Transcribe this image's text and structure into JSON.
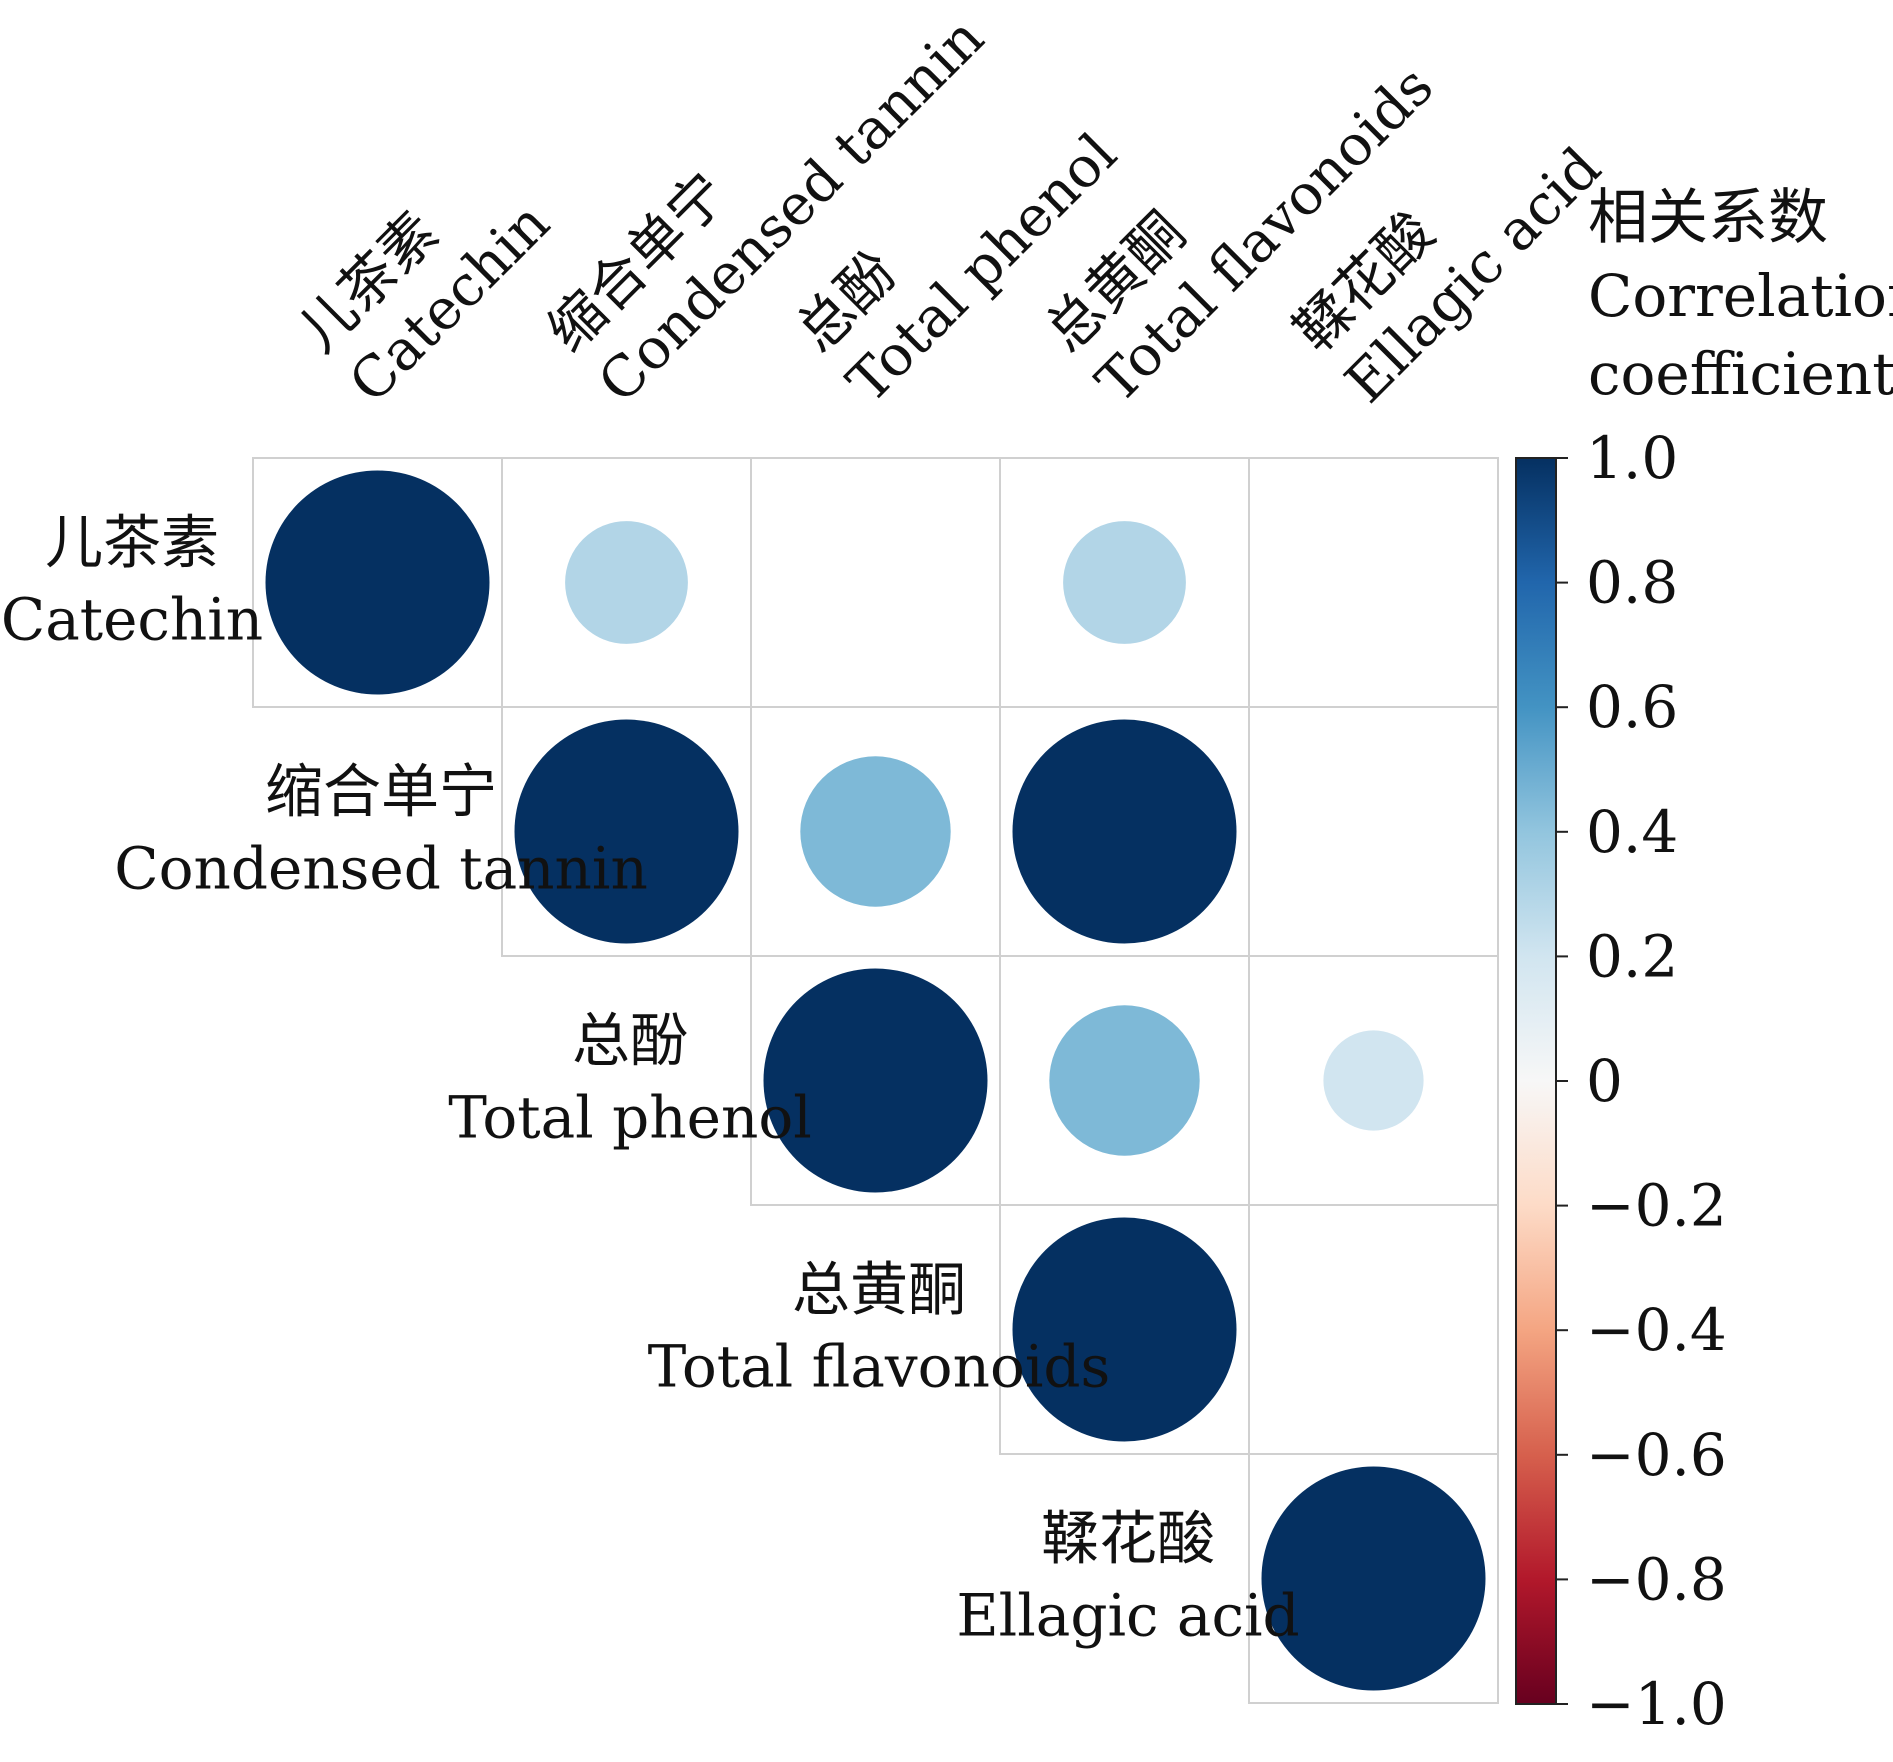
{
  "chart_data": {
    "type": "heatmap",
    "title": "",
    "variables": [
      {
        "zh": "儿茶素",
        "en": "Catechin"
      },
      {
        "zh": "缩合单宁",
        "en": "Condensed tannin"
      },
      {
        "zh": "总酚",
        "en": "Total phenol"
      },
      {
        "zh": "总黄酮",
        "en": "Total flavonoids"
      },
      {
        "zh": "鞣花酸",
        "en": "Ellagic acid"
      }
    ],
    "matrix": [
      [
        1.0,
        0.3,
        0.0,
        0.3,
        0.0
      ],
      [
        null,
        1.0,
        0.45,
        1.0,
        0.0
      ],
      [
        null,
        null,
        1.0,
        0.45,
        0.2
      ],
      [
        null,
        null,
        null,
        1.0,
        0.0
      ],
      [
        null,
        null,
        null,
        null,
        1.0
      ]
    ],
    "colorbar": {
      "title_zh": "相关系数",
      "title_en_1": "Correlation",
      "title_en_2": "coefficient",
      "range": [
        -1.0,
        1.0
      ],
      "ticks": [
        "1.0",
        "0.8",
        "0.6",
        "0.4",
        "0.2",
        "0",
        "−0.2",
        "−0.4",
        "−0.6",
        "−0.8",
        "−1.0"
      ],
      "colormap": "RdBu",
      "placement": "right"
    }
  }
}
